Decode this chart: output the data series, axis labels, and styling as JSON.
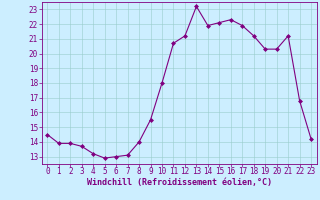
{
  "x": [
    0,
    1,
    2,
    3,
    4,
    5,
    6,
    7,
    8,
    9,
    10,
    11,
    12,
    13,
    14,
    15,
    16,
    17,
    18,
    19,
    20,
    21,
    22,
    23
  ],
  "y": [
    14.5,
    13.9,
    13.9,
    13.7,
    13.2,
    12.9,
    13.0,
    13.1,
    14.0,
    15.5,
    18.0,
    20.7,
    21.2,
    23.2,
    21.9,
    22.1,
    22.3,
    21.9,
    21.2,
    20.3,
    20.3,
    21.2,
    16.8,
    14.2
  ],
  "line_color": "#800080",
  "marker": "D",
  "marker_size": 2.0,
  "bg_color": "#cceeff",
  "grid_color": "#99cccc",
  "xlabel": "Windchill (Refroidissement éolien,°C)",
  "xlim": [
    -0.5,
    23.5
  ],
  "ylim": [
    12.5,
    23.5
  ],
  "yticks": [
    13,
    14,
    15,
    16,
    17,
    18,
    19,
    20,
    21,
    22,
    23
  ],
  "xticks": [
    0,
    1,
    2,
    3,
    4,
    5,
    6,
    7,
    8,
    9,
    10,
    11,
    12,
    13,
    14,
    15,
    16,
    17,
    18,
    19,
    20,
    21,
    22,
    23
  ],
  "tick_color": "#800080",
  "label_color": "#800080",
  "tick_fontsize": 5.5,
  "xlabel_fontsize": 6.0,
  "line_width": 0.8
}
